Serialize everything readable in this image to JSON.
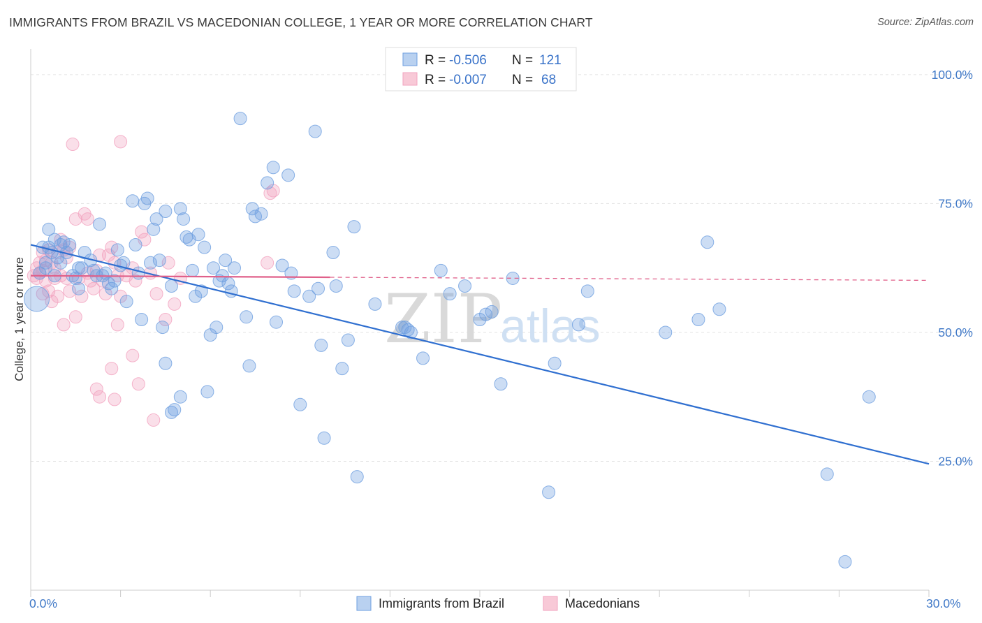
{
  "title": "IMMIGRANTS FROM BRAZIL VS MACEDONIAN COLLEGE, 1 YEAR OR MORE CORRELATION CHART",
  "source": "Source: ZipAtlas.com",
  "watermark": {
    "zip": "ZIP",
    "atlas": "atlas"
  },
  "chart_data": {
    "type": "scatter",
    "title": "IMMIGRANTS FROM BRAZIL VS MACEDONIAN COLLEGE, 1 YEAR OR MORE CORRELATION CHART",
    "xlabel": "",
    "ylabel": "College, 1 year or more",
    "xlim": [
      0,
      30
    ],
    "ylim": [
      0,
      105
    ],
    "x_tick_labels": [
      "0.0%",
      "30.0%"
    ],
    "y_ticks": [
      25,
      50,
      75,
      100
    ],
    "y_tick_labels": [
      "25.0%",
      "50.0%",
      "75.0%",
      "100.0%"
    ],
    "grid": true,
    "legend_placement": "top-center",
    "colors": {
      "brazil": "#6e9fe0",
      "brazil_line": "#2f6fd0",
      "macedonian": "#f2a3bf",
      "macedonian_line": "#e0608a"
    },
    "legend": [
      {
        "r_label": "R = ",
        "r_value": "-0.506",
        "n_label": "N = ",
        "n_value": "121"
      },
      {
        "r_label": "R = ",
        "r_value": "-0.007",
        "n_label": "N = ",
        "n_value": "68"
      }
    ],
    "series": [
      {
        "name": "Immigrants from Brazil",
        "trend": {
          "x": [
            0,
            30
          ],
          "y": [
            67,
            24.5
          ]
        },
        "points": [
          [
            0.2,
            56.5
          ],
          [
            0.3,
            61.5
          ],
          [
            0.4,
            66.5
          ],
          [
            0.5,
            62.5
          ],
          [
            0.6,
            66.5
          ],
          [
            0.6,
            70
          ],
          [
            0.7,
            65.5
          ],
          [
            0.8,
            68
          ],
          [
            0.9,
            64.5
          ],
          [
            1.0,
            63.5
          ],
          [
            1.0,
            67
          ],
          [
            1.1,
            67.5
          ],
          [
            1.2,
            65.5
          ],
          [
            1.3,
            67
          ],
          [
            1.4,
            61
          ],
          [
            1.5,
            60.5
          ],
          [
            1.6,
            58.5
          ],
          [
            1.7,
            62.5
          ],
          [
            1.8,
            65.5
          ],
          [
            2.0,
            64
          ],
          [
            2.1,
            62
          ],
          [
            2.3,
            71
          ],
          [
            2.4,
            61
          ],
          [
            2.5,
            61.5
          ],
          [
            2.6,
            59.5
          ],
          [
            2.7,
            58.5
          ],
          [
            2.8,
            60
          ],
          [
            2.9,
            66
          ],
          [
            3.0,
            63
          ],
          [
            3.2,
            56
          ],
          [
            3.4,
            75.5
          ],
          [
            3.5,
            67
          ],
          [
            3.6,
            61.5
          ],
          [
            3.7,
            52.5
          ],
          [
            3.8,
            75
          ],
          [
            3.9,
            76
          ],
          [
            4.0,
            63.5
          ],
          [
            4.1,
            70
          ],
          [
            4.2,
            72
          ],
          [
            4.3,
            64
          ],
          [
            4.4,
            51
          ],
          [
            4.5,
            73.5
          ],
          [
            4.5,
            44
          ],
          [
            4.7,
            59
          ],
          [
            4.8,
            35
          ],
          [
            5.0,
            74
          ],
          [
            5.0,
            37.5
          ],
          [
            5.1,
            72
          ],
          [
            5.2,
            68.5
          ],
          [
            5.3,
            68
          ],
          [
            5.4,
            62
          ],
          [
            5.5,
            57
          ],
          [
            5.6,
            69
          ],
          [
            5.7,
            58
          ],
          [
            5.8,
            66.5
          ],
          [
            5.9,
            38.5
          ],
          [
            6.0,
            49.5
          ],
          [
            6.1,
            62.5
          ],
          [
            6.2,
            51
          ],
          [
            6.4,
            61
          ],
          [
            6.5,
            64
          ],
          [
            6.6,
            59.5
          ],
          [
            6.7,
            58
          ],
          [
            6.8,
            62.5
          ],
          [
            7.0,
            91.5
          ],
          [
            7.2,
            53
          ],
          [
            7.3,
            43.5
          ],
          [
            7.4,
            74
          ],
          [
            7.5,
            72.5
          ],
          [
            7.7,
            73
          ],
          [
            7.9,
            79
          ],
          [
            8.1,
            82
          ],
          [
            8.2,
            52
          ],
          [
            8.4,
            63
          ],
          [
            8.6,
            80.5
          ],
          [
            8.7,
            61.5
          ],
          [
            8.8,
            58
          ],
          [
            9.0,
            36
          ],
          [
            9.3,
            57
          ],
          [
            9.5,
            89
          ],
          [
            9.6,
            58.5
          ],
          [
            9.7,
            47.5
          ],
          [
            9.8,
            29.5
          ],
          [
            10.1,
            65.5
          ],
          [
            10.2,
            59
          ],
          [
            10.4,
            43
          ],
          [
            10.6,
            48.5
          ],
          [
            10.8,
            70.5
          ],
          [
            10.9,
            22
          ],
          [
            11.5,
            55.5
          ],
          [
            12.5,
            51
          ],
          [
            12.6,
            50.5
          ],
          [
            12.7,
            50
          ],
          [
            13.1,
            45
          ],
          [
            13.7,
            62
          ],
          [
            14.0,
            57.5
          ],
          [
            14.5,
            59
          ],
          [
            15.0,
            52.5
          ],
          [
            15.2,
            53.5
          ],
          [
            15.4,
            54
          ],
          [
            15.7,
            40
          ],
          [
            16.1,
            60.5
          ],
          [
            17.3,
            19
          ],
          [
            17.5,
            44
          ],
          [
            18.3,
            51.5
          ],
          [
            18.6,
            58
          ],
          [
            21.2,
            50
          ],
          [
            22.3,
            52.5
          ],
          [
            22.6,
            67.5
          ],
          [
            23.0,
            54.5
          ],
          [
            26.6,
            22.5
          ],
          [
            28.0,
            37.5
          ],
          [
            0.8,
            61
          ],
          [
            1.6,
            62.5
          ],
          [
            2.2,
            61
          ],
          [
            4.7,
            34.5
          ],
          [
            0.5,
            63.5
          ],
          [
            3.1,
            63.5
          ],
          [
            6.3,
            60
          ],
          [
            12.4,
            51
          ],
          [
            27.2,
            5.5
          ]
        ],
        "sizes": {
          "0": 18
        }
      },
      {
        "name": "Macedonians",
        "trend": {
          "x": [
            0,
            10
          ],
          "y": [
            61,
            60.7
          ]
        },
        "trend_dashed": {
          "x": [
            10,
            30
          ],
          "y": [
            60.7,
            60.1
          ]
        },
        "points": [
          [
            0.1,
            61
          ],
          [
            0.2,
            62.5
          ],
          [
            0.2,
            60.5
          ],
          [
            0.3,
            63.5
          ],
          [
            0.3,
            61.5
          ],
          [
            0.4,
            65.5
          ],
          [
            0.4,
            62
          ],
          [
            0.5,
            64
          ],
          [
            0.5,
            60
          ],
          [
            0.6,
            66
          ],
          [
            0.6,
            58
          ],
          [
            0.7,
            63.5
          ],
          [
            0.7,
            56
          ],
          [
            0.8,
            62.5
          ],
          [
            0.8,
            60.5
          ],
          [
            0.9,
            65.5
          ],
          [
            0.9,
            57
          ],
          [
            1.0,
            68
          ],
          [
            1.0,
            61
          ],
          [
            1.1,
            66
          ],
          [
            1.1,
            51.5
          ],
          [
            1.2,
            64.5
          ],
          [
            1.2,
            60.5
          ],
          [
            1.3,
            66.5
          ],
          [
            1.3,
            58
          ],
          [
            1.4,
            86.5
          ],
          [
            1.5,
            72
          ],
          [
            1.5,
            53
          ],
          [
            1.6,
            60.5
          ],
          [
            1.7,
            57
          ],
          [
            1.8,
            73
          ],
          [
            1.9,
            61.5
          ],
          [
            2.0,
            60
          ],
          [
            2.1,
            58.5
          ],
          [
            2.2,
            62
          ],
          [
            2.3,
            65
          ],
          [
            2.3,
            37.5
          ],
          [
            2.4,
            60
          ],
          [
            2.5,
            57.5
          ],
          [
            2.6,
            65
          ],
          [
            2.7,
            66.5
          ],
          [
            2.8,
            63.5
          ],
          [
            2.9,
            61
          ],
          [
            3.0,
            87
          ],
          [
            3.0,
            57
          ],
          [
            3.2,
            61
          ],
          [
            3.4,
            62.5
          ],
          [
            3.5,
            60
          ],
          [
            3.7,
            69.5
          ],
          [
            3.8,
            68
          ],
          [
            4.0,
            61.5
          ],
          [
            4.2,
            57.5
          ],
          [
            4.5,
            52.5
          ],
          [
            4.6,
            63.5
          ],
          [
            4.8,
            55.5
          ],
          [
            5.0,
            60.5
          ],
          [
            0.4,
            57.5
          ],
          [
            1.9,
            72
          ],
          [
            2.2,
            39
          ],
          [
            2.7,
            43
          ],
          [
            2.8,
            37
          ],
          [
            2.9,
            51.5
          ],
          [
            3.4,
            45.5
          ],
          [
            3.6,
            40
          ],
          [
            4.1,
            33
          ],
          [
            8.0,
            77
          ],
          [
            8.1,
            77.5
          ],
          [
            7.9,
            63.5
          ]
        ]
      }
    ]
  },
  "bottom_legend": [
    {
      "label": "Immigrants from Brazil"
    },
    {
      "label": "Macedonians"
    }
  ]
}
